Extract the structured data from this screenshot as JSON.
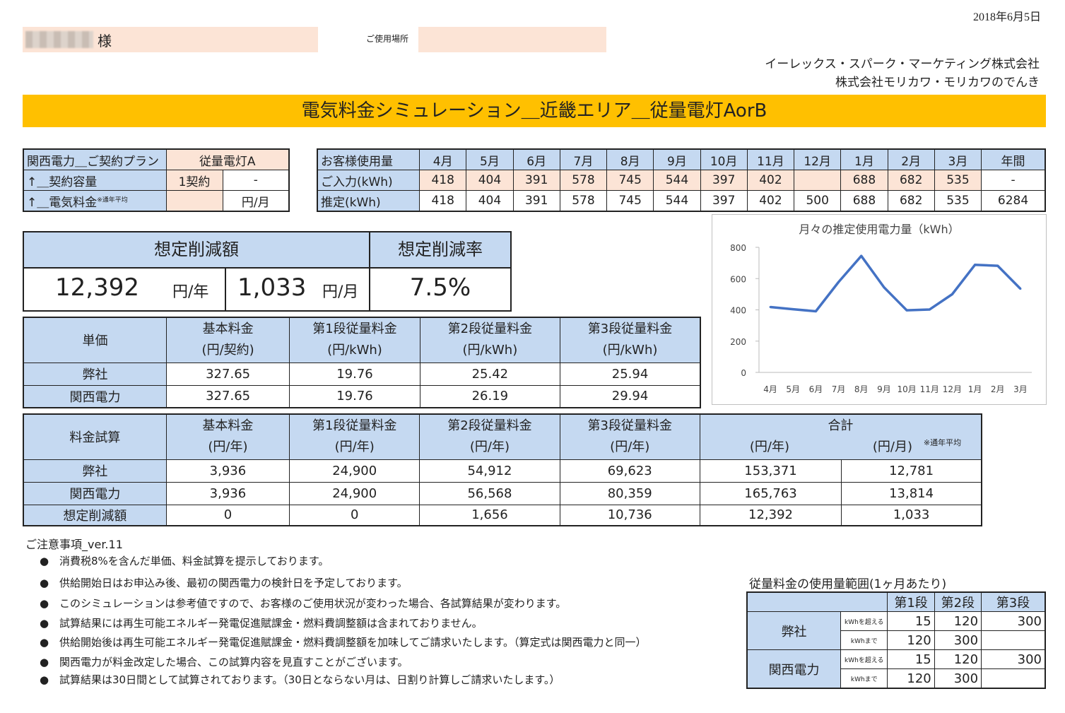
{
  "header": {
    "date": "2018年6月5日",
    "customer_honorific": "様",
    "place_label": "ご使用場所",
    "company1": "イーレックス・スパーク・マーケティング株式会社",
    "company2": "株式会社モリカワ・モリカワのでんき",
    "title": "電気料金シミュレーション＿近畿エリア＿従量電灯AorB"
  },
  "plan": {
    "row1_label": "関西電力＿ご契約プラン",
    "row1_value": "従量電灯A",
    "row2_label": "↑＿契約容量",
    "row2_value": "1契約",
    "row2_extra": "-",
    "row3_label": "↑＿電気料金",
    "row3_note": "※通年平均",
    "row3_unit": "円/月"
  },
  "usage": {
    "header_label": "お客様使用量",
    "months": [
      "4月",
      "5月",
      "6月",
      "7月",
      "8月",
      "9月",
      "10月",
      "11月",
      "12月",
      "1月",
      "2月",
      "3月",
      "年間"
    ],
    "input_label": "ご入力(kWh)",
    "input": [
      "418",
      "404",
      "391",
      "578",
      "745",
      "544",
      "397",
      "402",
      "",
      "688",
      "682",
      "535",
      "-"
    ],
    "est_label": "推定(kWh)",
    "est": [
      "418",
      "404",
      "391",
      "578",
      "745",
      "544",
      "397",
      "402",
      "500",
      "688",
      "682",
      "535",
      "6284"
    ]
  },
  "savings": {
    "amount_header": "想定削減額",
    "rate_header": "想定削減率",
    "per_year_value": "12,392",
    "per_year_unit": "円/年",
    "per_month_value": "1,033",
    "per_month_unit": "円/月",
    "rate_value": "7.5%"
  },
  "price": {
    "corner": "単価",
    "headers": [
      {
        "name": "基本料金",
        "unit": "(円/契約)"
      },
      {
        "name": "第1段従量料金",
        "unit": "(円/kWh)"
      },
      {
        "name": "第2段従量料金",
        "unit": "(円/kWh)"
      },
      {
        "name": "第3段従量料金",
        "unit": "(円/kWh)"
      }
    ],
    "rows": [
      {
        "label": "弊社",
        "values": [
          "327.65",
          "19.76",
          "25.42",
          "25.94"
        ]
      },
      {
        "label": "関西電力",
        "values": [
          "327.65",
          "19.76",
          "26.19",
          "29.94"
        ]
      }
    ]
  },
  "fee": {
    "corner": "料金試算",
    "headers": [
      {
        "name": "基本料金",
        "unit": "(円/年)"
      },
      {
        "name": "第1段従量料金",
        "unit": "(円/年)"
      },
      {
        "name": "第2段従量料金",
        "unit": "(円/年)"
      },
      {
        "name": "第3段従量料金",
        "unit": "(円/年)"
      }
    ],
    "total_header": "合計",
    "total_unit_year": "(円/年)",
    "total_unit_month": "(円/月)",
    "total_note": "※通年平均",
    "rows": [
      {
        "label": "弊社",
        "values": [
          "3,936",
          "24,900",
          "54,912",
          "69,623",
          "153,371",
          "12,781"
        ]
      },
      {
        "label": "関西電力",
        "values": [
          "3,936",
          "24,900",
          "56,568",
          "80,359",
          "165,763",
          "13,814"
        ]
      },
      {
        "label": "想定削減額",
        "values": [
          "0",
          "0",
          "1,656",
          "10,736",
          "12,392",
          "1,033"
        ]
      }
    ]
  },
  "chart_data": {
    "type": "line",
    "title": "月々の推定使用電力量（kWh）",
    "categories": [
      "4月",
      "5月",
      "6月",
      "7月",
      "8月",
      "9月",
      "10月",
      "11月",
      "12月",
      "1月",
      "2月",
      "3月"
    ],
    "values": [
      418,
      404,
      391,
      578,
      745,
      544,
      397,
      402,
      500,
      688,
      682,
      535
    ],
    "ylim": [
      0,
      800
    ],
    "yticks": [
      "0",
      "200",
      "400",
      "600",
      "800"
    ],
    "color": "#4472c4",
    "grid": false,
    "legend": "none"
  },
  "notes": {
    "title": "ご注意事項_ver.11",
    "bullet": "●",
    "items": [
      "消費税8%を含んだ単価、料金試算を提示しております。",
      "供給開始日はお申込み後、最初の関西電力の検針日を予定しております。",
      "このシミュレーションは参考値ですので、お客様のご使用状況が変わった場合、各試算結果が変わります。",
      "試算結果には再生可能エネルギー発電促進賦課金・燃料費調整額は含まれておりません。",
      "供給開始後は再生可能エネルギー発電促進賦課金・燃料費調整額を加味してご請求いたします。（算定式は関西電力と同一）",
      "関西電力が料金改定した場合、この試算内容を見直すことがございます。",
      "試算結果は30日間として試算されております。（30日とならない月は、日割り計算しご請求いたします。）"
    ]
  },
  "range": {
    "title": "従量料金の使用量範囲(1ヶ月あたり)",
    "headers": [
      "第1段",
      "第2段",
      "第3段"
    ],
    "over_label": "kWhを超える",
    "upto_label": "kWhまで",
    "companies": [
      {
        "name": "弊社",
        "over": [
          "15",
          "120",
          "300"
        ],
        "upto": [
          "120",
          "300",
          ""
        ]
      },
      {
        "name": "関西電力",
        "over": [
          "15",
          "120",
          "300"
        ],
        "upto": [
          "120",
          "300",
          ""
        ]
      }
    ]
  }
}
